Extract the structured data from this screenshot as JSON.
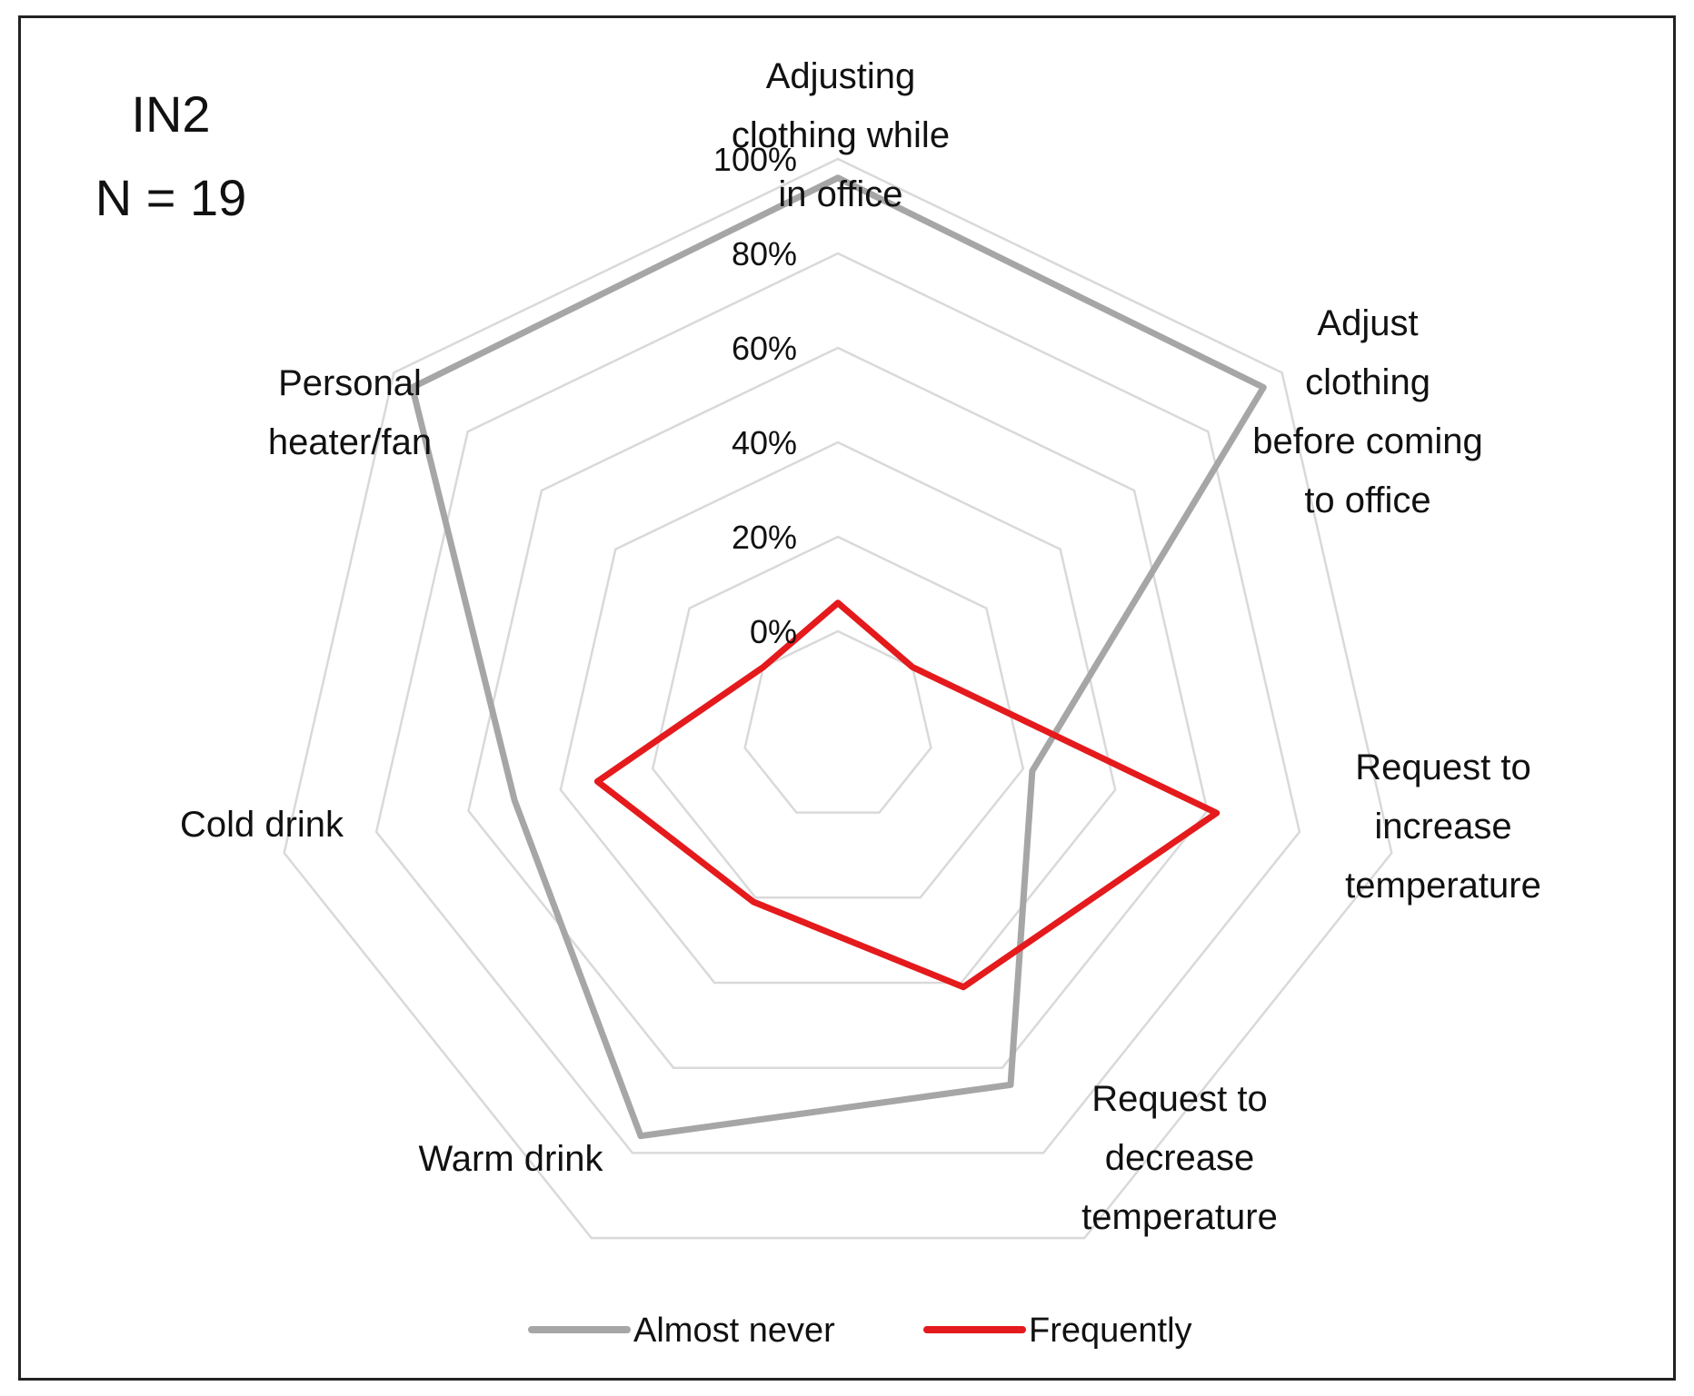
{
  "chart_data": {
    "type": "radar",
    "panel": {
      "name": "IN2",
      "n_label": "N = 19"
    },
    "categories": [
      [
        "Adjusting",
        "clothing while",
        "in office"
      ],
      [
        "Adjust",
        "clothing",
        "before coming",
        "to office"
      ],
      [
        "Request to",
        "increase",
        "temperature"
      ],
      [
        "Request to",
        "decrease",
        "temperature"
      ],
      [
        "Warm drink"
      ],
      [
        "Cold drink"
      ],
      [
        "Personal",
        "heater/fan"
      ]
    ],
    "series": [
      {
        "name": "Almost never",
        "color": "#a6a6a6",
        "values": [
          96,
          95,
          22,
          64,
          76,
          50,
          95
        ]
      },
      {
        "name": "Frequently",
        "color": "#e41a1c",
        "values": [
          6,
          0,
          62,
          41,
          21,
          32,
          0
        ]
      }
    ],
    "radial_axis": {
      "min": 0,
      "max": 100,
      "step": 20,
      "tick_labels": [
        "0%",
        "20%",
        "40%",
        "60%",
        "80%",
        "100%"
      ]
    },
    "legend_position": "bottom"
  }
}
